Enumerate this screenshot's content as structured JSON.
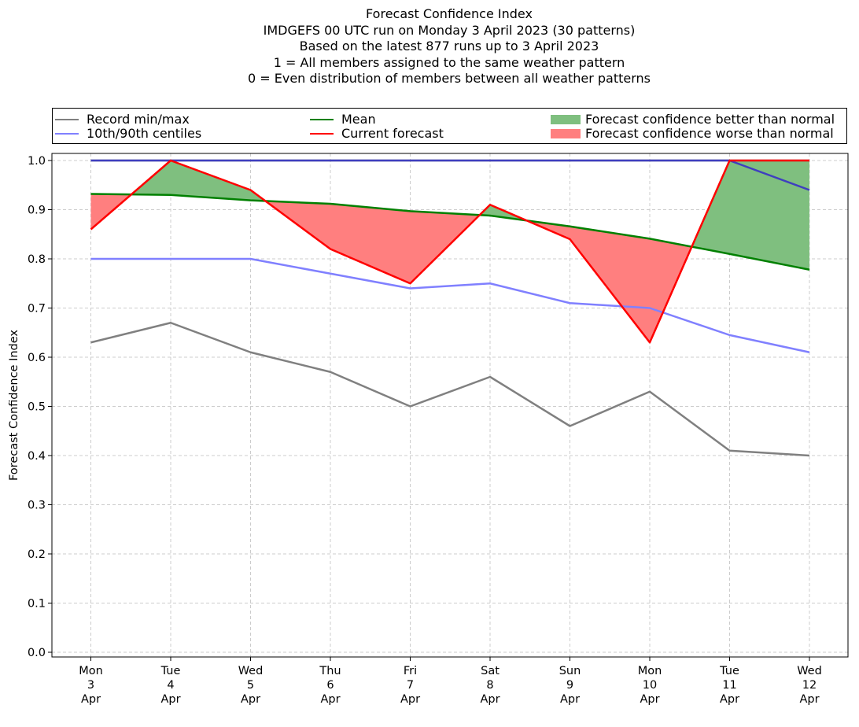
{
  "title_lines": [
    "Forecast Confidence Index",
    "IMDGEFS 00 UTC run on Monday 3 April 2023 (30 patterns)",
    "Based on the latest 877 runs up to 3 April 2023",
    "1 = All members assigned to the same weather pattern",
    "0 = Even distribution of members between all weather patterns"
  ],
  "legend": {
    "record": "Record min/max",
    "centiles": "10th/90th centiles",
    "mean": "Mean",
    "current": "Current forecast",
    "better": "Forecast confidence better than normal",
    "worse": "Forecast confidence worse than normal"
  },
  "colors": {
    "record": "#808080",
    "centiles": "#8080ff",
    "centile_top": "#3f3fbf",
    "mean": "#008000",
    "current": "#ff0000",
    "better_fill": "#7fbf7f",
    "worse_fill": "#ff7f7f",
    "grid": "#cccccc"
  },
  "chart_data": {
    "type": "line",
    "ylabel": "Forecast Confidence Index",
    "xlabel": "",
    "ylim": [
      0.0,
      1.0
    ],
    "y_ticks": [
      "0.0",
      "0.1",
      "0.2",
      "0.3",
      "0.4",
      "0.5",
      "0.6",
      "0.7",
      "0.8",
      "0.9",
      "1.0"
    ],
    "grid": true,
    "legend_position": "top",
    "x_labels": [
      [
        "Mon",
        "3",
        "Apr"
      ],
      [
        "Tue",
        "4",
        "Apr"
      ],
      [
        "Wed",
        "5",
        "Apr"
      ],
      [
        "Thu",
        "6",
        "Apr"
      ],
      [
        "Fri",
        "7",
        "Apr"
      ],
      [
        "Sat",
        "8",
        "Apr"
      ],
      [
        "Sun",
        "9",
        "Apr"
      ],
      [
        "Mon",
        "10",
        "Apr"
      ],
      [
        "Tue",
        "11",
        "Apr"
      ],
      [
        "Wed",
        "12",
        "Apr"
      ]
    ],
    "series": [
      {
        "name": "Record min/max",
        "role": "record_min",
        "values": [
          0.63,
          0.67,
          0.61,
          0.57,
          0.5,
          0.56,
          0.46,
          0.53,
          0.41,
          0.4
        ]
      },
      {
        "name": "Record min/max",
        "role": "record_max",
        "values": [
          1.0,
          1.0,
          1.0,
          1.0,
          1.0,
          1.0,
          1.0,
          1.0,
          1.0,
          1.0
        ]
      },
      {
        "name": "10th/90th centiles",
        "role": "p10",
        "values": [
          0.8,
          0.8,
          0.8,
          0.77,
          0.74,
          0.75,
          0.71,
          0.7,
          0.645,
          0.61
        ]
      },
      {
        "name": "10th/90th centiles",
        "role": "p90",
        "values": [
          1.0,
          1.0,
          1.0,
          1.0,
          1.0,
          1.0,
          1.0,
          1.0,
          1.0,
          0.94
        ]
      },
      {
        "name": "Mean",
        "role": "mean",
        "values": [
          0.932,
          0.93,
          0.919,
          0.912,
          0.897,
          0.888,
          0.866,
          0.841,
          0.81,
          0.778
        ]
      },
      {
        "name": "Current forecast",
        "role": "current",
        "values": [
          0.86,
          1.0,
          0.94,
          0.82,
          0.75,
          0.91,
          0.84,
          0.63,
          1.0,
          1.0
        ]
      }
    ]
  }
}
